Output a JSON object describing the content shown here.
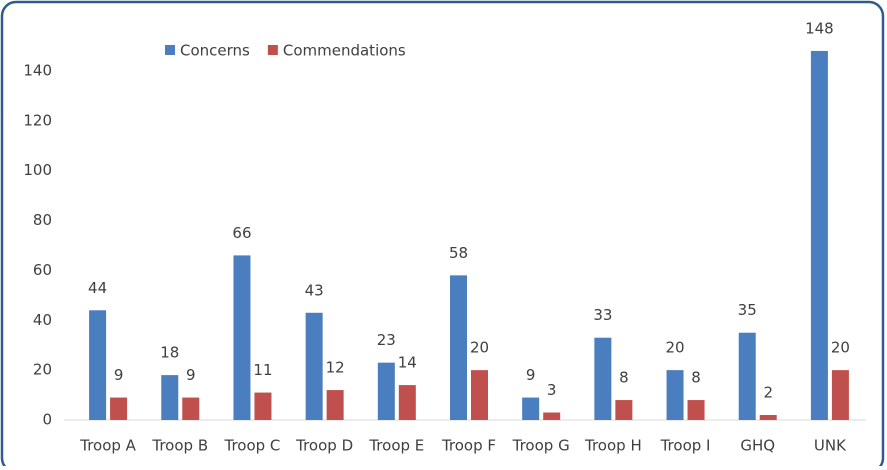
{
  "chart_data": {
    "type": "bar",
    "categories": [
      "Troop A",
      "Troop B",
      "Troop C",
      "Troop D",
      "Troop E",
      "Troop F",
      "Troop G",
      "Troop H",
      "Troop I",
      "GHQ",
      "UNK"
    ],
    "series": [
      {
        "name": "Concerns",
        "color": "#4a7ebf",
        "values": [
          44,
          18,
          66,
          43,
          23,
          58,
          9,
          33,
          20,
          35,
          148
        ]
      },
      {
        "name": "Commendations",
        "color": "#c0504d",
        "values": [
          9,
          9,
          11,
          12,
          14,
          20,
          3,
          8,
          8,
          2,
          20
        ]
      }
    ],
    "ylim": [
      0,
      160
    ],
    "yticks": [
      0,
      20,
      40,
      60,
      80,
      100,
      120,
      140
    ],
    "grid": false,
    "legend": "top"
  }
}
